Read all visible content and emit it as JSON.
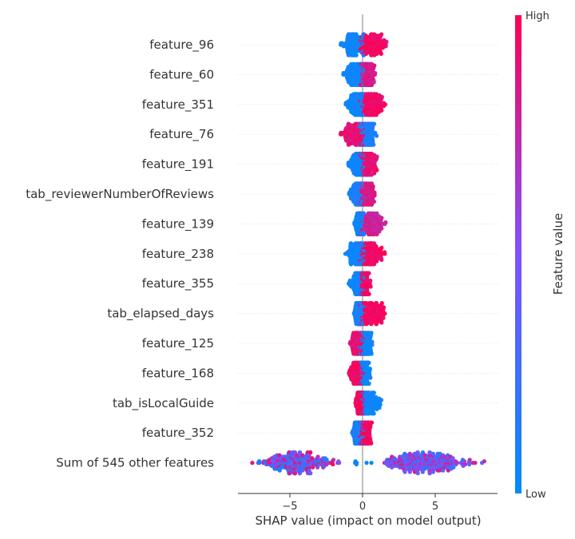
{
  "chart_data": {
    "type": "scatter",
    "subtype": "shap-beeswarm",
    "xlabel": "SHAP value (impact on model output)",
    "xlim": [
      -8.5,
      9.5
    ],
    "xticks": [
      -5,
      0,
      5
    ],
    "xtick_labels": [
      "−5",
      "0",
      "5"
    ],
    "colorbar": {
      "title": "Feature value",
      "high_label": "High",
      "low_label": "Low",
      "low_color": "#008bfb",
      "mid_color": "#7f52ff",
      "high_color": "#ff0052"
    },
    "grid": "dotted horizontal row lines",
    "features": [
      {
        "name": "feature_96",
        "center": 0.0,
        "neg_min": -1.6,
        "pos_max": 1.8,
        "neg_color": 0.05,
        "pos_color": 0.95
      },
      {
        "name": "feature_60",
        "center": 0.0,
        "neg_min": -1.4,
        "pos_max": 0.9,
        "neg_color": 0.05,
        "pos_color": 0.85
      },
      {
        "name": "feature_351",
        "center": 0.0,
        "neg_min": -1.3,
        "pos_max": 1.6,
        "neg_color": 0.05,
        "pos_color": 0.95
      },
      {
        "name": "feature_76",
        "center": 0.0,
        "neg_min": -1.6,
        "pos_max": 1.0,
        "neg_color": 0.9,
        "pos_color": 0.1
      },
      {
        "name": "feature_191",
        "center": 0.0,
        "neg_min": -1.0,
        "pos_max": 1.0,
        "neg_color": 0.05,
        "pos_color": 0.9
      },
      {
        "name": "feature_tab_reviewerNumberOfReviews",
        "label": "tab_reviewerNumberOfReviews",
        "center": 0.0,
        "neg_min": -1.0,
        "pos_max": 1.0,
        "neg_color": 0.1,
        "pos_color": 0.85
      },
      {
        "name": "feature_139",
        "center": 0.0,
        "neg_min": -0.6,
        "pos_max": 1.6,
        "neg_color": 0.05,
        "pos_color": 0.8
      },
      {
        "name": "feature_238",
        "center": 0.0,
        "neg_min": -1.2,
        "pos_max": 1.6,
        "neg_color": 0.05,
        "pos_color": 0.95
      },
      {
        "name": "feature_355",
        "center": 0.0,
        "neg_min": -1.0,
        "pos_max": 0.6,
        "neg_color": 0.05,
        "pos_color": 0.95
      },
      {
        "name": "feature_tab_elapsed_days",
        "label": "tab_elapsed_days",
        "center": 0.0,
        "neg_min": -0.6,
        "pos_max": 1.8,
        "neg_color": 0.1,
        "pos_color": 0.95
      },
      {
        "name": "feature_125",
        "center": 0.0,
        "neg_min": -1.0,
        "pos_max": 0.7,
        "neg_color": 0.9,
        "pos_color": 0.05
      },
      {
        "name": "feature_168",
        "center": 0.0,
        "neg_min": -1.0,
        "pos_max": 0.6,
        "neg_color": 0.95,
        "pos_color": 0.05
      },
      {
        "name": "feature_tab_isLocalGuide",
        "label": "tab_isLocalGuide",
        "center": 0.0,
        "neg_min": -0.5,
        "pos_max": 1.4,
        "neg_color": 0.97,
        "pos_color": 0.05
      },
      {
        "name": "feature_352",
        "center": 0.0,
        "neg_min": -0.8,
        "pos_max": 0.7,
        "neg_color": 0.1,
        "pos_color": 0.95
      },
      {
        "name": "feature_sum_other",
        "label": "Sum of 545 other features",
        "center": 0.0,
        "neg_min": -7.8,
        "pos_max": 8.5,
        "neg_color": 0.5,
        "pos_color": 0.5,
        "bimodal": true
      }
    ],
    "labels": [
      "feature_96",
      "feature_60",
      "feature_351",
      "feature_76",
      "feature_191",
      "tab_reviewerNumberOfReviews",
      "feature_139",
      "feature_238",
      "feature_355",
      "tab_elapsed_days",
      "feature_125",
      "feature_168",
      "tab_isLocalGuide",
      "feature_352",
      "Sum of 545 other features"
    ]
  }
}
